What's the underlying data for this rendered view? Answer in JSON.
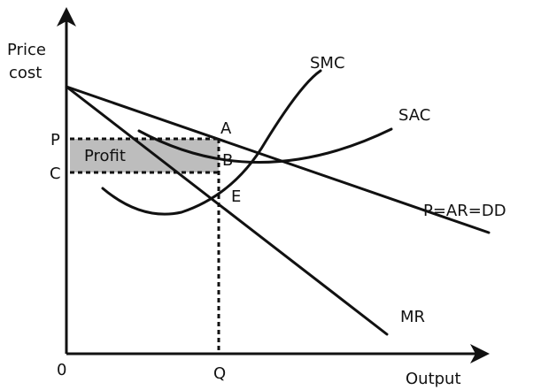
{
  "axes": {
    "y_label_line1": "Price",
    "y_label_line2": "cost",
    "x_label": "Output",
    "origin": "0"
  },
  "curves": {
    "smc": "SMC",
    "sac": "SAC",
    "demand": "P=AR=DD",
    "mr": "MR"
  },
  "points": {
    "a": "A",
    "b": "B",
    "e": "E"
  },
  "levels": {
    "price": "P",
    "cost": "C",
    "quantity": "Q"
  },
  "region": {
    "profit": "Profit",
    "fill_color": "#bdbdbd"
  },
  "colors": {
    "ink": "#111111"
  }
}
